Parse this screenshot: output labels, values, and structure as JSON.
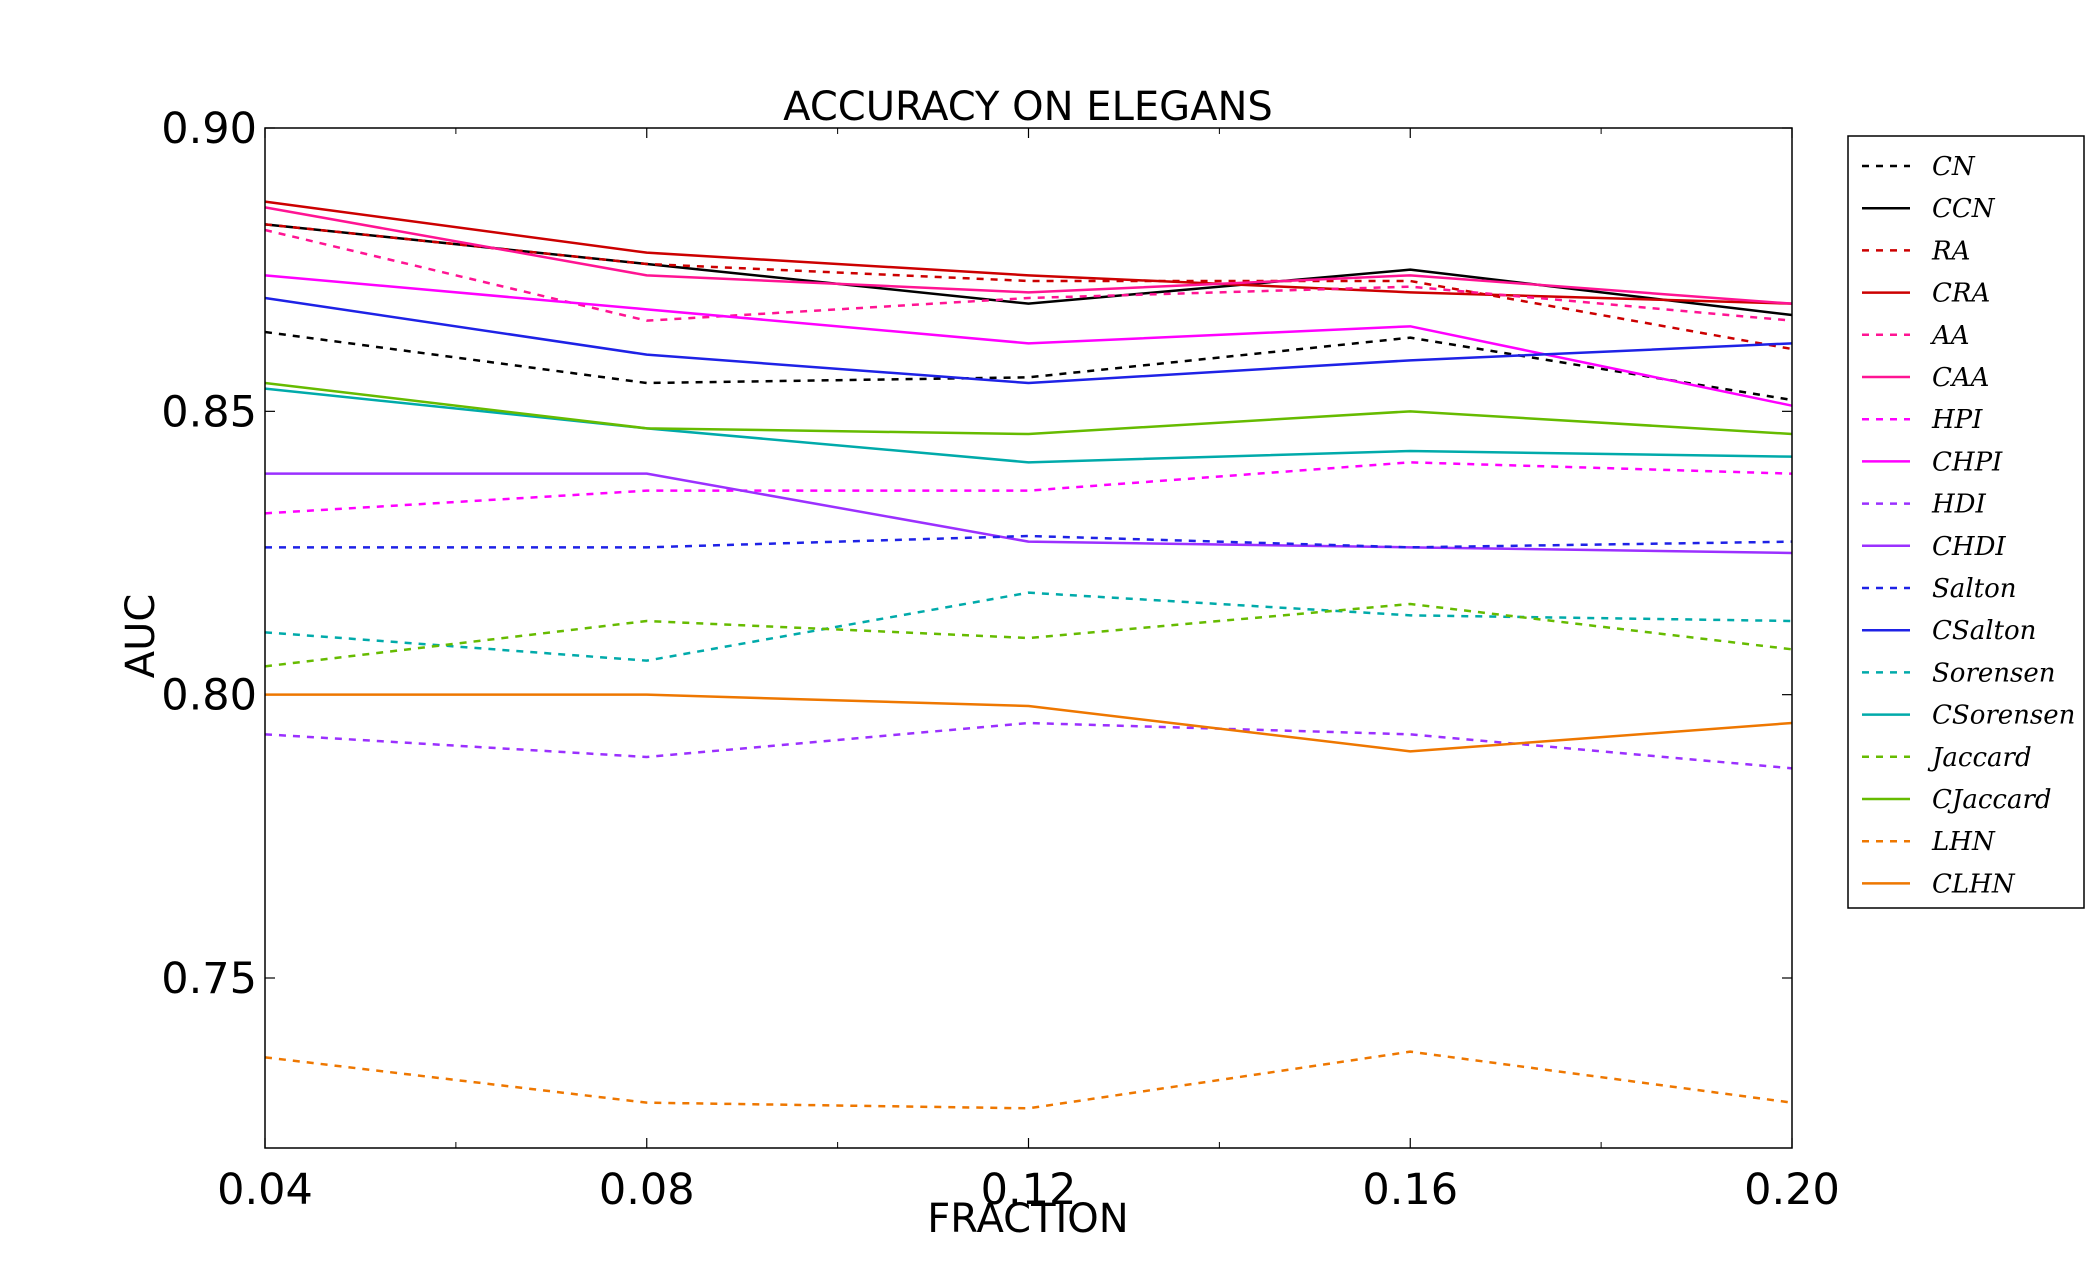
{
  "chart_data": {
    "type": "line",
    "title": "ACCURACY ON ELEGANS",
    "xlabel": "FRACTION",
    "ylabel": "AUC",
    "x": [
      0.04,
      0.08,
      0.12,
      0.16,
      0.2
    ],
    "xlim": [
      0.04,
      0.2
    ],
    "ylim": [
      0.72,
      0.9
    ],
    "xticks": [
      0.04,
      0.08,
      0.12,
      0.16,
      0.2
    ],
    "xtick_labels": [
      "0.04",
      "0.08",
      "0.12",
      "0.16",
      "0.20"
    ],
    "yticks": [
      0.75,
      0.8,
      0.85,
      0.9
    ],
    "ytick_labels": [
      "0.75",
      "0.80",
      "0.85",
      "0.90"
    ],
    "grid": false,
    "legend_position": "outside-right",
    "series": [
      {
        "name": "CN",
        "color": "#000000",
        "dash": "dashed",
        "values": [
          0.864,
          0.855,
          0.856,
          0.863,
          0.852
        ]
      },
      {
        "name": "CCN",
        "color": "#000000",
        "dash": "solid",
        "values": [
          0.883,
          0.876,
          0.869,
          0.875,
          0.867
        ]
      },
      {
        "name": "RA",
        "color": "#cc0000",
        "dash": "dashed",
        "values": [
          0.883,
          0.876,
          0.873,
          0.873,
          0.861
        ]
      },
      {
        "name": "CRA",
        "color": "#cc0000",
        "dash": "solid",
        "values": [
          0.887,
          0.878,
          0.874,
          0.871,
          0.869
        ]
      },
      {
        "name": "AA",
        "color": "#ff1493",
        "dash": "dashed",
        "values": [
          0.882,
          0.866,
          0.87,
          0.872,
          0.866
        ]
      },
      {
        "name": "CAA",
        "color": "#ff1493",
        "dash": "solid",
        "values": [
          0.886,
          0.874,
          0.871,
          0.874,
          0.869
        ]
      },
      {
        "name": "HPI",
        "color": "#ff00ff",
        "dash": "dashed",
        "values": [
          0.832,
          0.836,
          0.836,
          0.841,
          0.839
        ]
      },
      {
        "name": "CHPI",
        "color": "#ff00ff",
        "dash": "solid",
        "values": [
          0.874,
          0.868,
          0.862,
          0.865,
          0.851
        ]
      },
      {
        "name": "HDI",
        "color": "#9b30ff",
        "dash": "dashed",
        "values": [
          0.793,
          0.789,
          0.795,
          0.793,
          0.787
        ]
      },
      {
        "name": "CHDI",
        "color": "#9b30ff",
        "dash": "solid",
        "values": [
          0.839,
          0.839,
          0.827,
          0.826,
          0.825
        ]
      },
      {
        "name": "Salton",
        "color": "#1e22e6",
        "dash": "dashed",
        "values": [
          0.826,
          0.826,
          0.828,
          0.826,
          0.827
        ]
      },
      {
        "name": "CSalton",
        "color": "#1e22e6",
        "dash": "solid",
        "values": [
          0.87,
          0.86,
          0.855,
          0.859,
          0.862
        ]
      },
      {
        "name": "Sorensen",
        "color": "#00aaaa",
        "dash": "dashed",
        "values": [
          0.811,
          0.806,
          0.818,
          0.814,
          0.813
        ]
      },
      {
        "name": "CSorensen",
        "color": "#00aaaa",
        "dash": "solid",
        "values": [
          0.854,
          0.847,
          0.841,
          0.843,
          0.842
        ]
      },
      {
        "name": "Jaccard",
        "color": "#66bb00",
        "dash": "dashed",
        "values": [
          0.805,
          0.813,
          0.81,
          0.816,
          0.808
        ]
      },
      {
        "name": "CJaccard",
        "color": "#66bb00",
        "dash": "solid",
        "values": [
          0.855,
          0.847,
          0.846,
          0.85,
          0.846
        ]
      },
      {
        "name": "LHN",
        "color": "#ee7700",
        "dash": "dashed",
        "values": [
          0.736,
          0.728,
          0.727,
          0.737,
          0.728
        ]
      },
      {
        "name": "CLHN",
        "color": "#ee7700",
        "dash": "solid",
        "values": [
          0.8,
          0.8,
          0.798,
          0.79,
          0.795
        ]
      }
    ]
  }
}
